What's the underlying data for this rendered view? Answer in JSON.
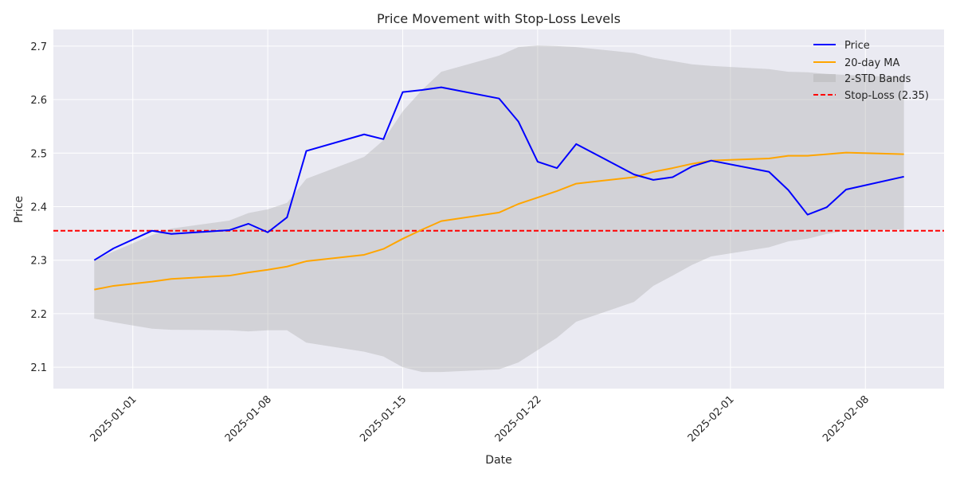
{
  "chart_data": {
    "type": "line",
    "title": "Price Movement with Stop-Loss Levels",
    "xlabel": "Date",
    "ylabel": "Price",
    "ylim": [
      2.06,
      2.731
    ],
    "xlim": [
      "2024-12-27.9",
      "2025-02-12.1"
    ],
    "grid": true,
    "legend_position": "top-right",
    "yticks": [
      2.1,
      2.2,
      2.3,
      2.4,
      2.5,
      2.6,
      2.7
    ],
    "ytick_labels": [
      "2.1",
      "2.2",
      "2.3",
      "2.4",
      "2.5",
      "2.6",
      "2.7"
    ],
    "xticks": [
      "2025-01-01",
      "2025-01-08",
      "2025-01-15",
      "2025-01-22",
      "2025-02-01",
      "2025-02-08"
    ],
    "x": [
      "2024-12-30",
      "2024-12-31",
      "2025-01-02",
      "2025-01-03",
      "2025-01-06",
      "2025-01-07",
      "2025-01-08",
      "2025-01-09",
      "2025-01-10",
      "2025-01-13",
      "2025-01-14",
      "2025-01-15",
      "2025-01-16",
      "2025-01-17",
      "2025-01-20",
      "2025-01-21",
      "2025-01-22",
      "2025-01-23",
      "2025-01-24",
      "2025-01-27",
      "2025-01-28",
      "2025-01-29",
      "2025-01-30",
      "2025-01-31",
      "2025-02-03",
      "2025-02-04",
      "2025-02-05",
      "2025-02-06",
      "2025-02-07",
      "2025-02-10"
    ],
    "series": [
      {
        "name": "Price",
        "color": "#0000ff",
        "values": [
          2.3,
          2.322,
          2.355,
          2.349,
          2.356,
          2.368,
          2.352,
          2.38,
          2.504,
          2.535,
          2.526,
          2.614,
          2.618,
          2.623,
          2.602,
          2.559,
          2.484,
          2.472,
          2.517,
          2.46,
          2.45,
          2.455,
          2.475,
          2.486,
          2.465,
          2.431,
          2.385,
          2.399,
          2.432,
          2.456
        ]
      },
      {
        "name": "20-day MA",
        "color": "#ffa500",
        "values": [
          2.245,
          2.252,
          2.26,
          2.265,
          2.271,
          2.277,
          2.282,
          2.288,
          2.298,
          2.31,
          2.321,
          2.34,
          2.357,
          2.373,
          2.389,
          2.405,
          2.417,
          2.429,
          2.443,
          2.455,
          2.465,
          2.472,
          2.48,
          2.486,
          2.49,
          2.495,
          2.495,
          2.498,
          2.501,
          2.498
        ]
      }
    ],
    "bands": {
      "name": "2-STD Bands",
      "color": "#b0b0b0",
      "upper": [
        2.3,
        2.316,
        2.347,
        2.359,
        2.374,
        2.388,
        2.395,
        2.407,
        2.452,
        2.493,
        2.524,
        2.578,
        2.618,
        2.652,
        2.682,
        2.698,
        2.701,
        2.7,
        2.698,
        2.687,
        2.678,
        2.672,
        2.666,
        2.663,
        2.657,
        2.652,
        2.651,
        2.648,
        2.646,
        2.642
      ],
      "lower": [
        2.191,
        2.184,
        2.172,
        2.17,
        2.169,
        2.167,
        2.169,
        2.169,
        2.146,
        2.129,
        2.12,
        2.1,
        2.091,
        2.091,
        2.096,
        2.109,
        2.132,
        2.155,
        2.185,
        2.222,
        2.252,
        2.271,
        2.291,
        2.307,
        2.324,
        2.335,
        2.34,
        2.349,
        2.355,
        2.358
      ]
    },
    "stop_loss": {
      "name": "Stop-Loss (2.35)",
      "value": 2.355,
      "color": "#ff0000"
    }
  }
}
